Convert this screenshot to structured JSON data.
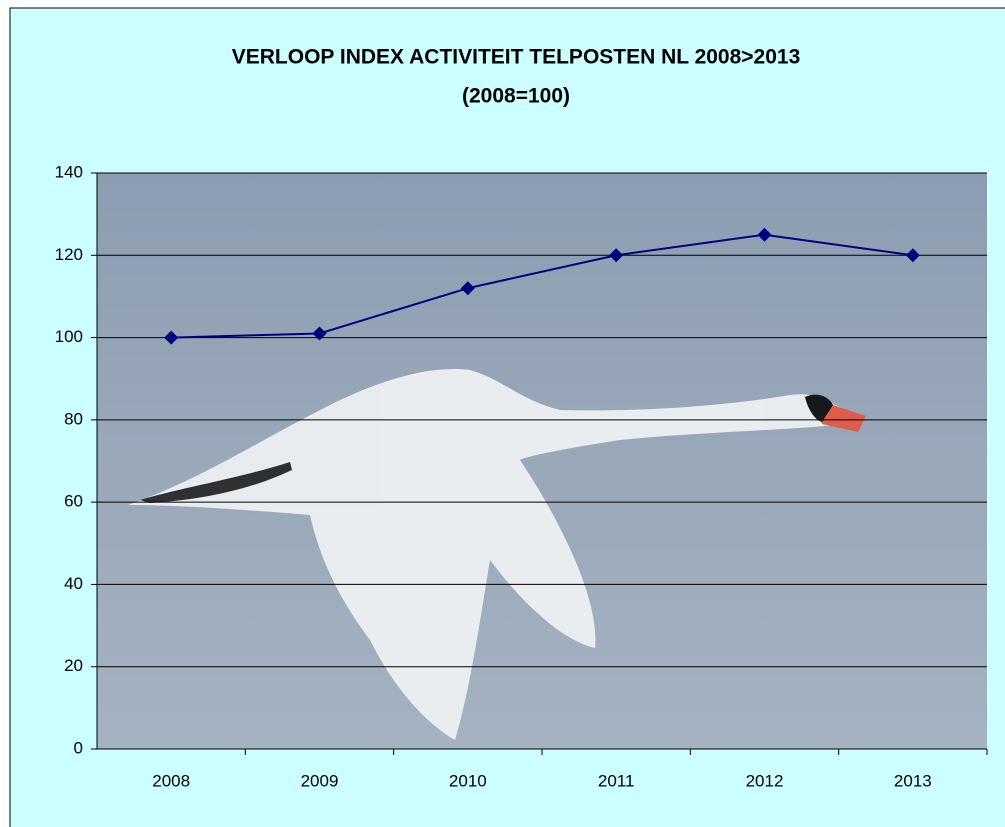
{
  "chart_data": {
    "type": "line",
    "title": "VERLOOP INDEX ACTIVITEIT TELPOSTEN NL 2008>2013",
    "subtitle": "(2008=100)",
    "categories": [
      "2008",
      "2009",
      "2010",
      "2011",
      "2012",
      "2013"
    ],
    "series": [
      {
        "color": "#000080",
        "values": [
          100,
          101,
          112,
          120,
          125,
          120
        ]
      }
    ],
    "ylim": [
      0,
      140
    ],
    "yticks": [
      0,
      20,
      40,
      60,
      80,
      100,
      120,
      140
    ],
    "grid": true
  }
}
